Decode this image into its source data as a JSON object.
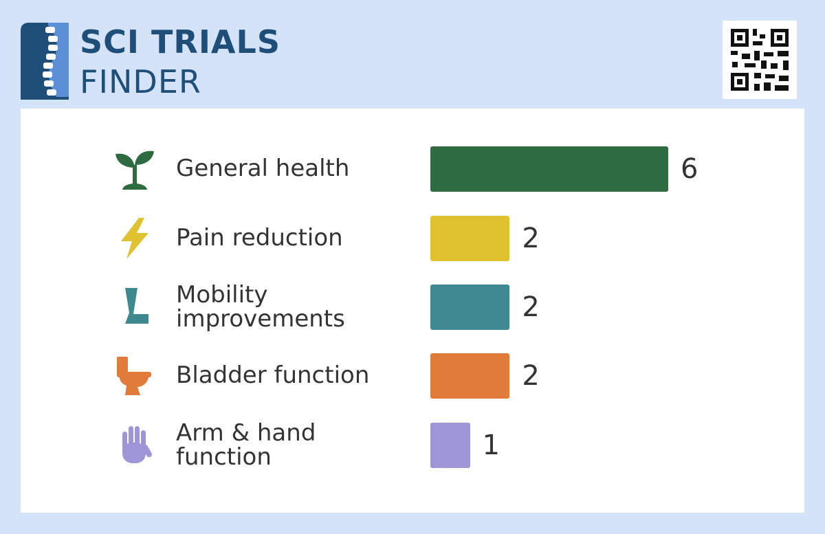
{
  "header": {
    "title_line1": "SCI TRIALS",
    "title_line2": "FINDER"
  },
  "chart_data": {
    "type": "hbar",
    "categories": [
      "General health",
      "Pain reduction",
      "Mobility improvements",
      "Bladder function",
      "Arm & hand function"
    ],
    "values": [
      6,
      2,
      2,
      2,
      1
    ],
    "colors": [
      "#2e6b41",
      "#e0c12f",
      "#3e8990",
      "#e07b39",
      "#9d95d6"
    ]
  }
}
